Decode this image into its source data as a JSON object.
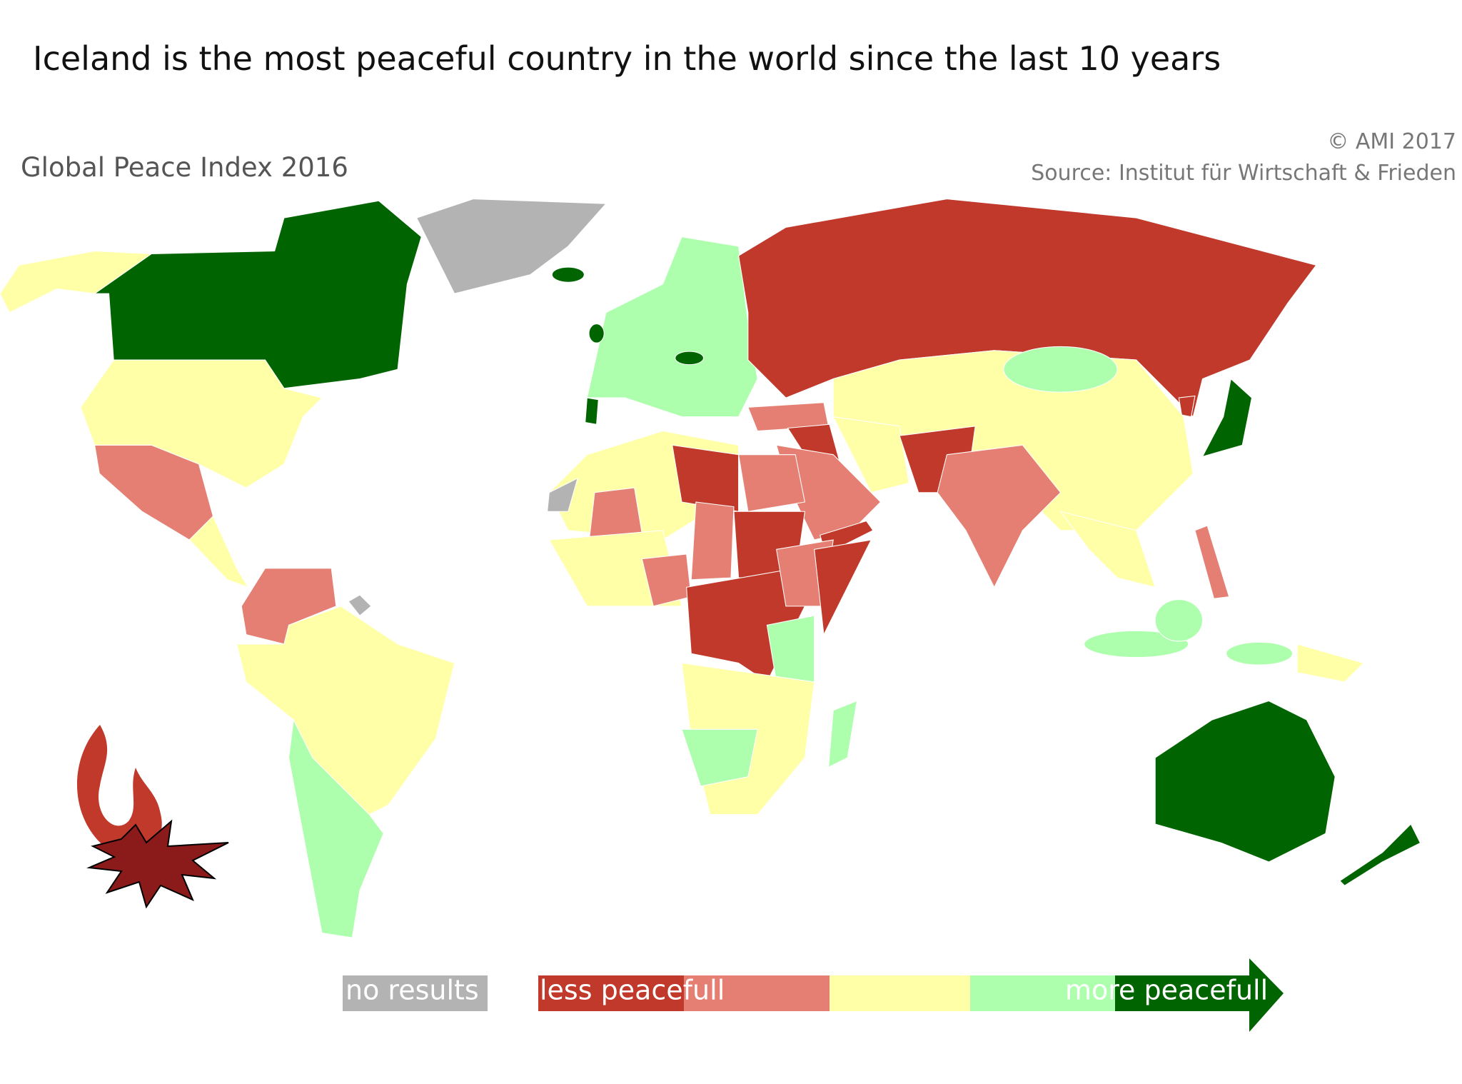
{
  "header": {
    "title": "Iceland is the most peaceful country in the world since the last 10 years",
    "subtitle": "Global Peace Index 2016",
    "copyright": "© AMI 2017",
    "source": "Source: Institut für Wirtschaft & Frieden"
  },
  "legend": {
    "items": [
      {
        "label": "no results",
        "color": "#b3b3b3"
      },
      {
        "label": "less peacefull",
        "color": "#c0392b"
      },
      {
        "color": "#e57f73"
      },
      {
        "color": "#ffffa8"
      },
      {
        "color": "#adffad"
      },
      {
        "label": "more peacefull",
        "color": "#006400"
      }
    ]
  }
}
